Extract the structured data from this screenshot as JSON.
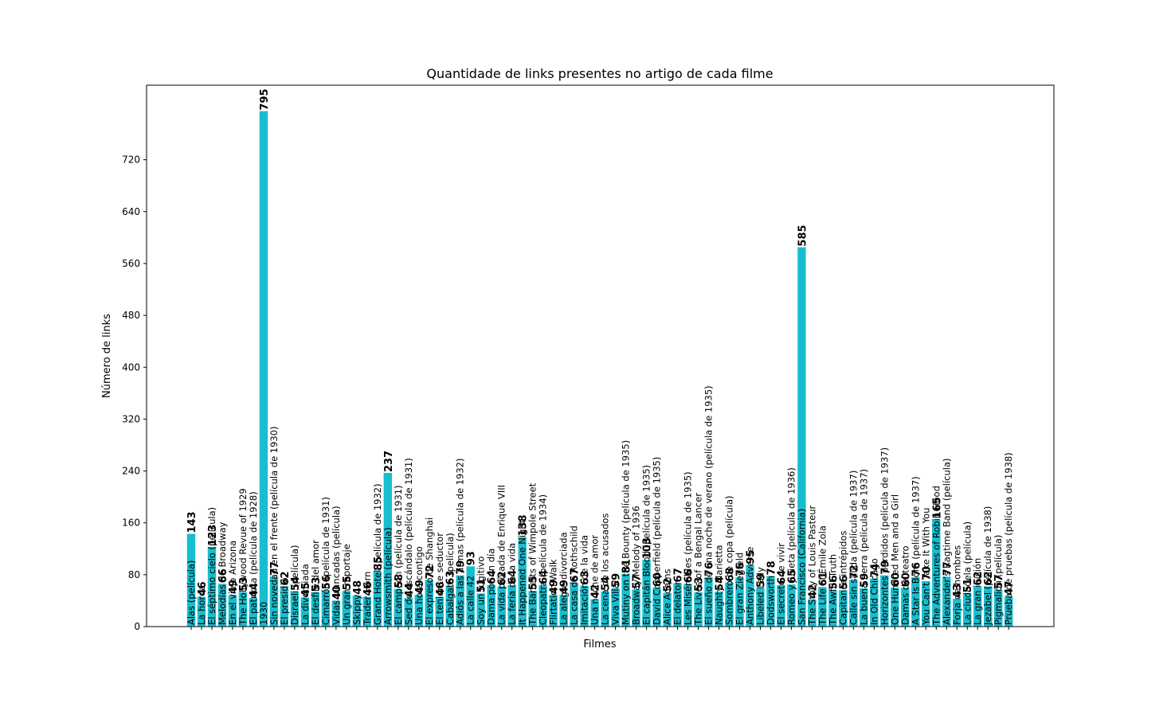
{
  "chart_data": {
    "type": "bar",
    "title": "Quantidade de links presentes no artigo de cada filme",
    "xlabel": "Filmes",
    "ylabel": "Número de links",
    "color": "#17becf",
    "categories": [
      "Alas (película)",
      "La horda",
      "El séptimo cielo (película)",
      "Melodías de Broadway",
      "En el viejo Arizona",
      "The Hollywood Revue of 1929",
      "El patriota (película de 1928)",
      "1930",
      "Sin novedad en el frente (película de 1930)",
      "El presidio",
      "Disraeli (película)",
      "La divorciada",
      "El desfile del amor",
      "Cimarrón (película de 1931)",
      "Vidas truncadas (película)",
      "Un gran reportaje",
      "Skippy",
      "Trader Horn",
      "Grand Hotel (película de 1932)",
      "Arrowsmith (película)",
      "El campeón (película de 1931)",
      "Sed de escándalo (película de 1931)",
      "Una hora contigo",
      "El expreso de Shanghai",
      "El teniente seductor",
      "Cabalgata (película)",
      "Adiós a las armas (película de 1932)",
      "La calle 42",
      "Soy un fugitivo",
      "Dama por un día",
      "La vida privada de Enrique VIII",
      "La feria de la vida",
      "It Happened One Night",
      "The Barretts of Wimpole Street",
      "Cleopatra (película de 1934)",
      "Flirtation Walk",
      "La alegre divorciada",
      "La casa de Rothschild",
      "Imitación de la vida",
      "Una noche de amor",
      "La cena de los acusados",
      "Viva Villa!",
      "Mutiny on the Bounty (película de 1935)",
      "Broadway Melody of 1936",
      "El capitán Blood (película de 1935)",
      "David Copperfield (película de 1935)",
      "Alice Adams",
      "El delator",
      "Les Misérables (película de 1935)",
      "The Lives of a Bengal Lancer",
      "El sueño de una noche de verano (película de 1935)",
      "Naughty Marietta",
      "Sombrero de copa (película)",
      "El gran Ziegfeld",
      "Anthony Adverse",
      "Libeled Lady",
      "Dodsworth",
      "El secreto de vivir",
      "Romeo y Julieta (película de 1936)",
      "San Francisco (California)",
      "The Story of Louis Pasteur",
      "The Life of Émile Zola",
      "The Awful Truth",
      "Capitanes intrépidos",
      "Calle sin salida (película de 1937)",
      "La buena tierra (película de 1937)",
      "In Old Chicago",
      "Horizontes perdidos (película de 1937)",
      "One Hundred Men and a Girl",
      "Damas del teatro",
      "A Star Is Born (película de 1937)",
      "You Can't Take It With You",
      "The Adventures of Robin Hood",
      "Alexander's Ragtime Band (película)",
      "Forja de hombres",
      "La ciudadela (película)",
      "La gran ilusión",
      "Jezabel (película de 1938)",
      "Pigmalión (película)",
      "Prueba de pruebas (película de 1938)"
    ],
    "values": [
      143,
      46,
      123,
      66,
      49,
      53,
      44,
      795,
      77,
      62,
      54,
      45,
      53,
      56,
      40,
      55,
      48,
      46,
      85,
      237,
      58,
      44,
      49,
      72,
      46,
      63,
      79,
      93,
      51,
      64,
      62,
      64,
      138,
      55,
      64,
      49,
      49,
      67,
      63,
      42,
      54,
      59,
      81,
      57,
      103,
      60,
      52,
      67,
      66,
      53,
      76,
      54,
      68,
      76,
      95,
      59,
      78,
      64,
      65,
      585,
      42,
      61,
      56,
      56,
      72,
      59,
      74,
      79,
      60,
      60,
      76,
      70,
      165,
      77,
      43,
      51,
      62,
      62,
      57,
      47
    ],
    "ylim": [
      0,
      835
    ],
    "yticks": [
      0,
      80,
      160,
      240,
      320,
      400,
      480,
      560,
      640,
      720
    ]
  }
}
